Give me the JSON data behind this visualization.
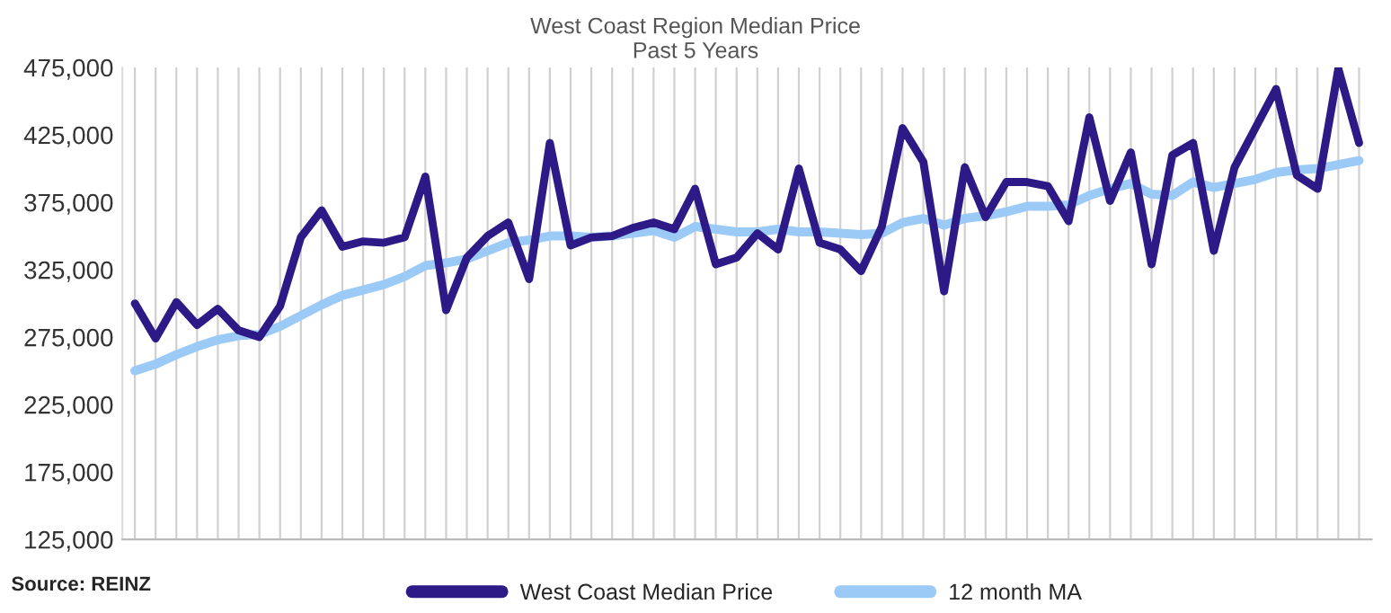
{
  "chart_data": {
    "type": "line",
    "title": "West Coast Region Median Price",
    "subtitle": "Past 5 Years",
    "categories": [
      null,
      null,
      null,
      null,
      null,
      null,
      null,
      null,
      null,
      null,
      null,
      null,
      null,
      null,
      null,
      null,
      null,
      null,
      null,
      null,
      null,
      null,
      null,
      null,
      null,
      null,
      null,
      null,
      null,
      null,
      null,
      null,
      null,
      null,
      null,
      null,
      null,
      null,
      null,
      null,
      null,
      null,
      null,
      null,
      null,
      null,
      null,
      null,
      null,
      null,
      null,
      null,
      null,
      null,
      null,
      null,
      null,
      null,
      null,
      null
    ],
    "series": [
      {
        "name": "West Coast Median Price",
        "color": "#2e1a87",
        "values": [
          300000,
          274000,
          301000,
          284000,
          296000,
          280000,
          275000,
          298000,
          349000,
          369000,
          342000,
          346000,
          345000,
          349000,
          394000,
          295000,
          334000,
          350000,
          360000,
          318000,
          419000,
          343000,
          349000,
          350000,
          356000,
          360000,
          355000,
          385000,
          329000,
          334000,
          352000,
          340000,
          400000,
          345000,
          340000,
          324000,
          357000,
          430000,
          405000,
          309000,
          401000,
          364000,
          390000,
          390000,
          387000,
          361000,
          438000,
          376000,
          412000,
          329000,
          410000,
          419000,
          339000,
          401000,
          430000,
          459000,
          395000,
          385000,
          474000,
          419000
        ]
      },
      {
        "name": "12 month MA",
        "color": "#9ccaf7",
        "values": [
          250000,
          255000,
          262000,
          268000,
          273000,
          276000,
          277000,
          283000,
          291000,
          299000,
          306000,
          310000,
          314000,
          320000,
          328000,
          330000,
          333000,
          339000,
          345000,
          347000,
          350000,
          350000,
          349000,
          350000,
          352000,
          354000,
          349000,
          357000,
          355000,
          353000,
          353000,
          355000,
          353000,
          353000,
          352000,
          351000,
          352000,
          360000,
          363000,
          358000,
          363000,
          365000,
          368000,
          372000,
          372000,
          373000,
          380000,
          385000,
          389000,
          381000,
          380000,
          390000,
          386000,
          389000,
          392000,
          397000,
          399000,
          400000,
          403000,
          406000
        ]
      }
    ],
    "ylim": [
      125000,
      475000
    ],
    "yticks": [
      {
        "value": 125000,
        "label": "125,000"
      },
      {
        "value": 175000,
        "label": "175,000"
      },
      {
        "value": 225000,
        "label": "225,000"
      },
      {
        "value": 275000,
        "label": "275,000"
      },
      {
        "value": 325000,
        "label": "325,000"
      },
      {
        "value": 375000,
        "label": "375,000"
      },
      {
        "value": 425000,
        "label": "425,000"
      },
      {
        "value": 475000,
        "label": "475,000"
      }
    ],
    "grid": "x",
    "legend": "bottom",
    "marker": "none",
    "line_style": "solid",
    "annotations": [
      "Source: REINZ"
    ]
  }
}
